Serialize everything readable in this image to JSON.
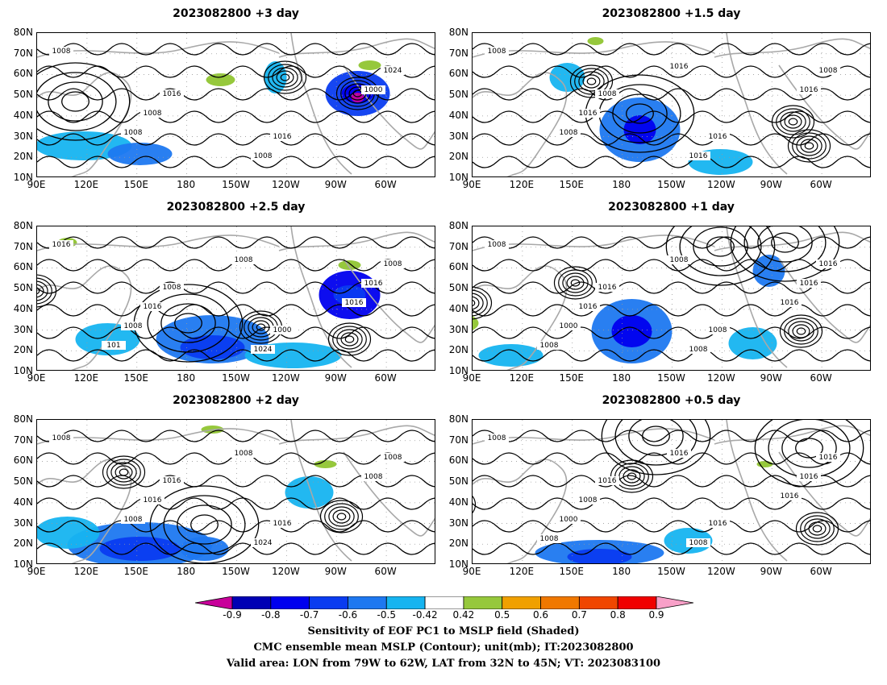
{
  "panels": [
    {
      "title": "2023082800  +3 day",
      "slot": "left-1"
    },
    {
      "title": "2023082800  +1.5 day",
      "slot": "right-1"
    },
    {
      "title": "2023082800  +2.5 day",
      "slot": "left-2"
    },
    {
      "title": "2023082800  +1 day",
      "slot": "right-2"
    },
    {
      "title": "2023082800  +2 day",
      "slot": "left-3"
    },
    {
      "title": "2023082800  +0.5 day",
      "slot": "right-3"
    }
  ],
  "lat_labels": [
    "80N",
    "70N",
    "60N",
    "50N",
    "40N",
    "30N",
    "20N",
    "10N"
  ],
  "lon_labels": [
    "90E",
    "120E",
    "150E",
    "180",
    "150W",
    "120W",
    "90W",
    "60W"
  ],
  "isobar_labels": {
    "p1": [
      "1008",
      "1016",
      "1016",
      "1024",
      "1008",
      "1008",
      "1000",
      "1008"
    ],
    "p2": [
      "1008",
      "1008",
      "1016",
      "1008",
      "1016",
      "1016",
      "1016",
      "1008",
      "1016"
    ],
    "p3": [
      "1016",
      "1008",
      "1000",
      "1008",
      "1016",
      "1024",
      "1016",
      "1008",
      "1008",
      "1016",
      "101"
    ],
    "p4": [
      "1008",
      "1016",
      "1008",
      "1016",
      "1016",
      "1008",
      "1016",
      "1000",
      "1008",
      "1016",
      "1008"
    ],
    "p5": [
      "1008",
      "1016",
      "1016",
      "1008",
      "1016",
      "1024",
      "1008",
      "1008",
      "1008"
    ],
    "p6": [
      "1008",
      "1016",
      "1016",
      "1016",
      "1008",
      "1008",
      "1016",
      "1000",
      "1016",
      "1016",
      "1008"
    ]
  },
  "colorbar": {
    "ticks": [
      "-0.9",
      "-0.8",
      "-0.7",
      "-0.6",
      "-0.5",
      "-0.42",
      "0.42",
      "0.5",
      "0.6",
      "0.7",
      "0.8",
      "0.9"
    ],
    "colors": [
      "#c8009a",
      "#0000b4",
      "#0000ee",
      "#0a3cf0",
      "#1e78f0",
      "#16b4f0",
      "#ffffff",
      "#96c83c",
      "#f0a000",
      "#f07800",
      "#f04600",
      "#f00000",
      "#f8a0c8"
    ]
  },
  "caption": {
    "line1": "Sensitivity of EOF PC1 to MSLP field (Shaded)",
    "line2": "CMC ensemble mean MSLP (Contour); unit(mb); IT:2023082800",
    "line3": "Valid area: LON from 79W to 62W, LAT from 32N to 45N; VT: 2023083100"
  }
}
